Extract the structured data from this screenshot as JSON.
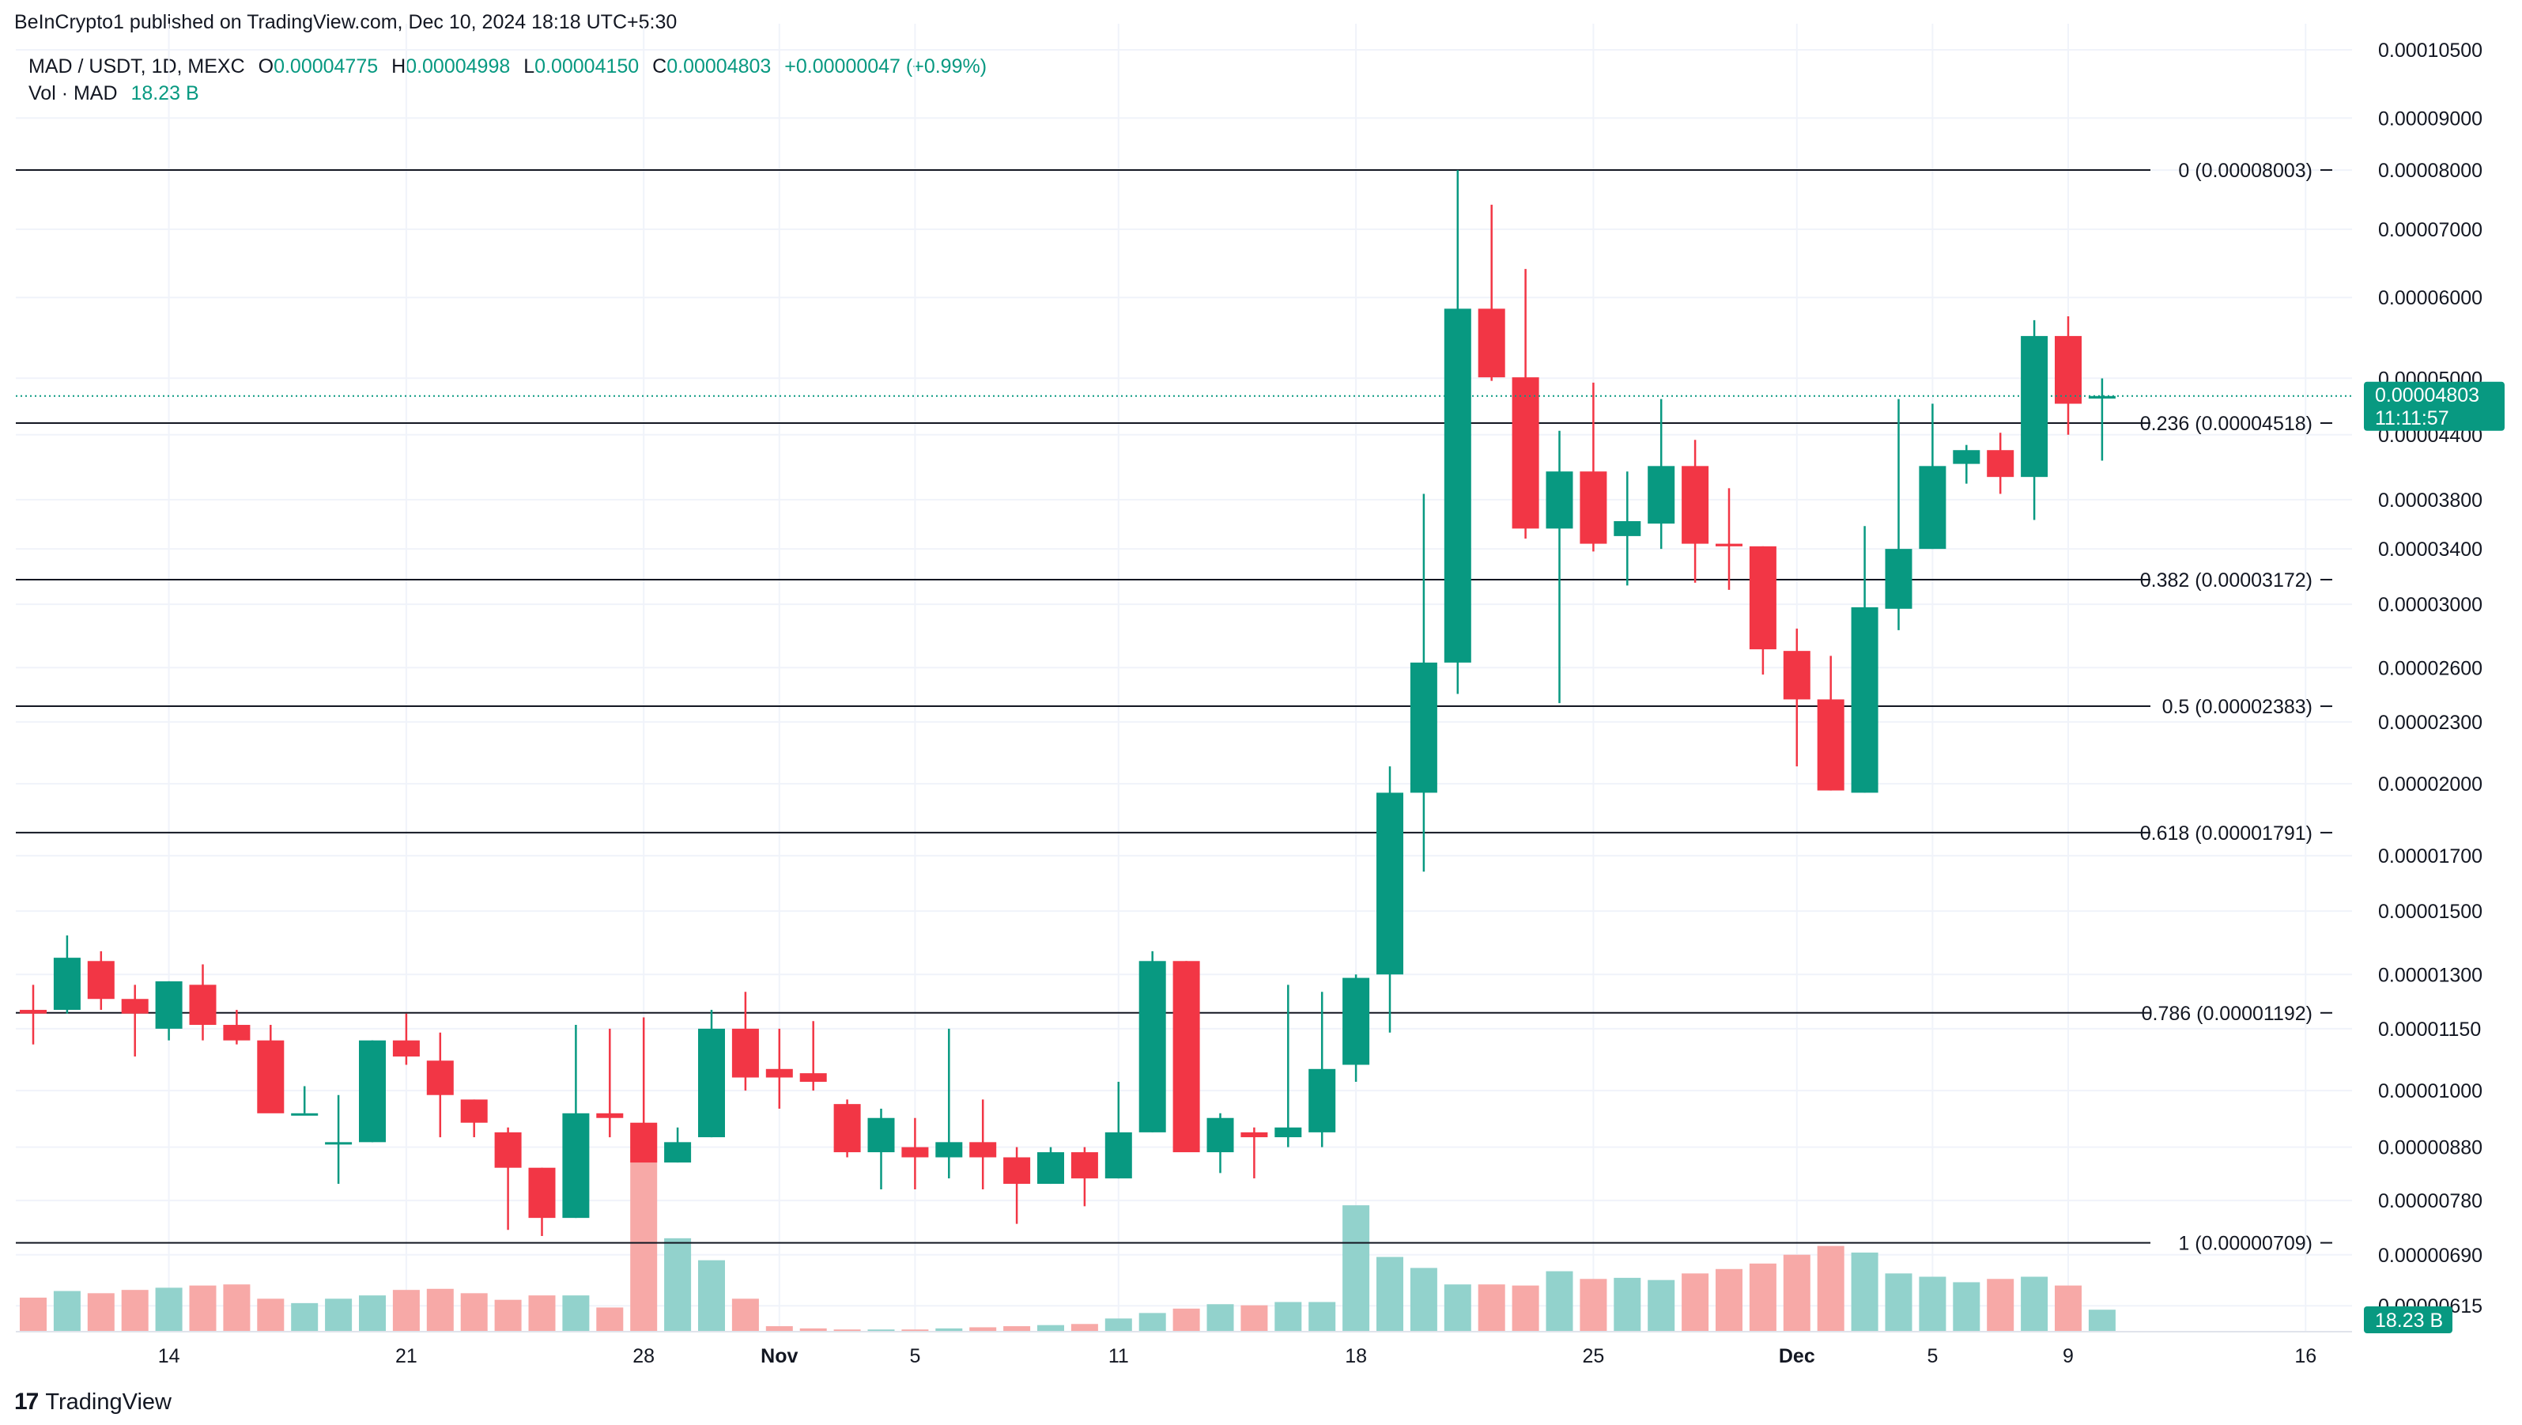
{
  "publisher": "BeInCrypto1 published on TradingView.com, Dec 10, 2024 18:18 UTC+5:30",
  "header": {
    "symbol": "MAD / USDT, 1D, MEXC",
    "o_label": "O",
    "o": "0.00004775",
    "h_label": "H",
    "h": "0.00004998",
    "l_label": "L",
    "l": "0.00004150",
    "c_label": "C",
    "c": "0.00004803",
    "change": "+0.00000047 (+0.99%)",
    "vol_label": "Vol · MAD",
    "vol_value": "18.23 B"
  },
  "brand": "TradingView",
  "colors": {
    "up": "#089981",
    "down": "#F23645",
    "up_vol": "#92D2CC",
    "down_vol": "#F7A9A7"
  },
  "chart_data": {
    "type": "candlestick",
    "yscale": "log",
    "ylim": [
      5.8e-06,
      0.0001094
    ],
    "y_ticks": [
      "0.00010500",
      "0.00009000",
      "0.00008000",
      "0.00007000",
      "0.00006000",
      "0.00005000",
      "0.00004400",
      "0.00003800",
      "0.00003400",
      "0.00003000",
      "0.00002600",
      "0.00002300",
      "0.00002000",
      "0.00001700",
      "0.00001500",
      "0.00001300",
      "0.00001150",
      "0.00001000",
      "0.00000880",
      "0.00000780",
      "0.00000690",
      "0.00000615"
    ],
    "x_ticks": [
      {
        "label": "14",
        "index": 4,
        "bold": false
      },
      {
        "label": "21",
        "index": 11,
        "bold": false
      },
      {
        "label": "28",
        "index": 18,
        "bold": false
      },
      {
        "label": "Nov",
        "index": 22,
        "bold": true
      },
      {
        "label": "5",
        "index": 26,
        "bold": false
      },
      {
        "label": "11",
        "index": 32,
        "bold": false
      },
      {
        "label": "18",
        "index": 39,
        "bold": false
      },
      {
        "label": "25",
        "index": 46,
        "bold": false
      },
      {
        "label": "Dec",
        "index": 52,
        "bold": true
      },
      {
        "label": "5",
        "index": 56,
        "bold": false
      },
      {
        "label": "9",
        "index": 60,
        "bold": false
      },
      {
        "label": "16",
        "index": 67,
        "bold": false
      }
    ],
    "candles": [
      [
        1.2e-05,
        1.27e-05,
        1.11e-05,
        1.19e-05,
        0.31
      ],
      [
        1.2e-05,
        1.42e-05,
        1.19e-05,
        1.35e-05,
        0.37
      ],
      [
        1.34e-05,
        1.37e-05,
        1.2e-05,
        1.23e-05,
        0.35
      ],
      [
        1.23e-05,
        1.27e-05,
        1.08e-05,
        1.19e-05,
        0.38
      ],
      [
        1.15e-05,
        1.28e-05,
        1.12e-05,
        1.28e-05,
        0.4
      ],
      [
        1.27e-05,
        1.33e-05,
        1.12e-05,
        1.16e-05,
        0.42
      ],
      [
        1.16e-05,
        1.2e-05,
        1.11e-05,
        1.12e-05,
        0.43
      ],
      [
        1.12e-05,
        1.16e-05,
        9.9e-06,
        9.5e-06,
        0.3
      ],
      [
        9.5e-06,
        1.01e-05,
        9.5e-06,
        9.5e-06,
        0.26
      ],
      [
        8.9e-06,
        9.9e-06,
        8.1e-06,
        8.9e-06,
        0.3
      ],
      [
        8.9e-06,
        1.12e-05,
        8.9e-06,
        1.12e-05,
        0.33
      ],
      [
        1.12e-05,
        1.19e-05,
        1.06e-05,
        1.08e-05,
        0.38
      ],
      [
        1.07e-05,
        1.14e-05,
        9e-06,
        9.9e-06,
        0.39
      ],
      [
        9.8e-06,
        9.8e-06,
        9e-06,
        9.3e-06,
        0.35
      ],
      [
        9.1e-06,
        9.2e-06,
        7.3e-06,
        8.4e-06,
        0.29
      ],
      [
        8.4e-06,
        8.4e-06,
        7.2e-06,
        7.5e-06,
        0.33
      ],
      [
        7.5e-06,
        1.16e-05,
        7.5e-06,
        9.5e-06,
        0.33
      ],
      [
        9.5e-06,
        1.15e-05,
        9e-06,
        9.4e-06,
        0.22
      ],
      [
        9.3e-06,
        1.18e-05,
        8.6e-06,
        8.5e-06,
        1.88
      ],
      [
        8.5e-06,
        9.2e-06,
        8.5e-06,
        8.9e-06,
        0.85
      ],
      [
        9e-06,
        1.2e-05,
        9e-06,
        1.15e-05,
        0.65
      ],
      [
        1.15e-05,
        1.25e-05,
        1e-05,
        1.03e-05,
        0.3
      ],
      [
        1.05e-05,
        1.15e-05,
        9.6e-06,
        1.03e-05,
        0.05
      ],
      [
        1.04e-05,
        1.17e-05,
        1e-05,
        1.02e-05,
        0.03
      ],
      [
        9.7e-06,
        9.8e-06,
        8.6e-06,
        8.7e-06,
        0.02
      ],
      [
        8.7e-06,
        9.6e-06,
        8e-06,
        9.4e-06,
        0.02
      ],
      [
        8.8e-06,
        9.4e-06,
        8e-06,
        8.6e-06,
        0.02
      ],
      [
        8.6e-06,
        1.15e-05,
        8.2e-06,
        8.9e-06,
        0.03
      ],
      [
        8.9e-06,
        9.8e-06,
        8e-06,
        8.6e-06,
        0.04
      ],
      [
        8.6e-06,
        8.8e-06,
        7.4e-06,
        8.1e-06,
        0.05
      ],
      [
        8.1e-06,
        8.8e-06,
        8.1e-06,
        8.7e-06,
        0.06
      ],
      [
        8.7e-06,
        8.8e-06,
        7.7e-06,
        8.2e-06,
        0.07
      ],
      [
        8.2e-06,
        1.02e-05,
        8.2e-06,
        9.1e-06,
        0.12
      ],
      [
        9.1e-06,
        1.37e-05,
        9.1e-06,
        1.34e-05,
        0.17
      ],
      [
        1.34e-05,
        1.34e-05,
        8.7e-06,
        8.7e-06,
        0.21
      ],
      [
        8.7e-06,
        9.5e-06,
        8.3e-06,
        9.4e-06,
        0.25
      ],
      [
        9.1e-06,
        9.2e-06,
        8.2e-06,
        9e-06,
        0.24
      ],
      [
        9e-06,
        1.27e-05,
        8.8e-06,
        9.2e-06,
        0.27
      ],
      [
        9.1e-06,
        1.25e-05,
        8.8e-06,
        1.05e-05,
        0.27
      ],
      [
        1.06e-05,
        1.3e-05,
        1.02e-05,
        1.29e-05,
        1.15
      ],
      [
        1.3e-05,
        2.08e-05,
        1.14e-05,
        1.96e-05,
        0.68
      ],
      [
        1.96e-05,
        3.85e-05,
        1.64e-05,
        2.63e-05,
        0.58
      ],
      [
        2.63e-05,
        8e-05,
        2.45e-05,
        5.85e-05,
        0.43
      ],
      [
        5.85e-05,
        7.4e-05,
        4.97e-05,
        5.01e-05,
        0.43
      ],
      [
        5.01e-05,
        6.4e-05,
        3.48e-05,
        3.56e-05,
        0.42
      ],
      [
        3.56e-05,
        4.44e-05,
        2.4e-05,
        4.05e-05,
        0.55
      ],
      [
        4.05e-05,
        4.95e-05,
        3.38e-05,
        3.44e-05,
        0.48
      ],
      [
        3.5e-05,
        4.05e-05,
        3.13e-05,
        3.62e-05,
        0.49
      ],
      [
        3.6e-05,
        4.77e-05,
        3.4e-05,
        4.1e-05,
        0.47
      ],
      [
        4.1e-05,
        4.35e-05,
        3.15e-05,
        3.44e-05,
        0.53
      ],
      [
        3.44e-05,
        3.9e-05,
        3.1e-05,
        3.42e-05,
        0.57
      ],
      [
        3.42e-05,
        3.42e-05,
        2.56e-05,
        2.71e-05,
        0.62
      ],
      [
        2.7e-05,
        2.84e-05,
        2.08e-05,
        2.42e-05,
        0.7
      ],
      [
        2.42e-05,
        2.67e-05,
        1.97e-05,
        1.97e-05,
        0.78
      ],
      [
        1.96e-05,
        3.58e-05,
        1.96e-05,
        2.98e-05,
        0.72
      ],
      [
        2.97e-05,
        4.77e-05,
        2.83e-05,
        3.4e-05,
        0.53
      ],
      [
        3.4e-05,
        4.72e-05,
        3.4e-05,
        4.1e-05,
        0.5
      ],
      [
        4.12e-05,
        4.3e-05,
        3.94e-05,
        4.25e-05,
        0.45
      ],
      [
        4.25e-05,
        4.42e-05,
        3.85e-05,
        4e-05,
        0.48
      ],
      [
        4e-05,
        5.7e-05,
        3.63e-05,
        5.5e-05,
        0.5
      ],
      [
        5.5e-05,
        5.75e-05,
        4.4e-05,
        4.72e-05,
        0.42
      ],
      [
        4.775e-05,
        4.998e-05,
        4.15e-05,
        4.803e-05,
        0.2
      ]
    ],
    "fib_levels": [
      {
        "ratio": "0",
        "price": 8.003e-05,
        "label": "0 (0.00008003)"
      },
      {
        "ratio": "0.236",
        "price": 4.518e-05,
        "label": "0.236 (0.00004518)"
      },
      {
        "ratio": "0.382",
        "price": 3.172e-05,
        "label": "0.382 (0.00003172)"
      },
      {
        "ratio": "0.5",
        "price": 2.383e-05,
        "label": "0.5 (0.00002383)"
      },
      {
        "ratio": "0.618",
        "price": 1.791e-05,
        "label": "0.618 (0.00001791)"
      },
      {
        "ratio": "0.786",
        "price": 1.192e-05,
        "label": "0.786 (0.00001192)"
      },
      {
        "ratio": "1",
        "price": 7.09e-06,
        "label": "1 (0.00000709)"
      }
    ],
    "last_price": 4.803e-05,
    "last_price_label": "0.00004803",
    "countdown": "11:11:57",
    "volume_label": "18.23 B"
  }
}
